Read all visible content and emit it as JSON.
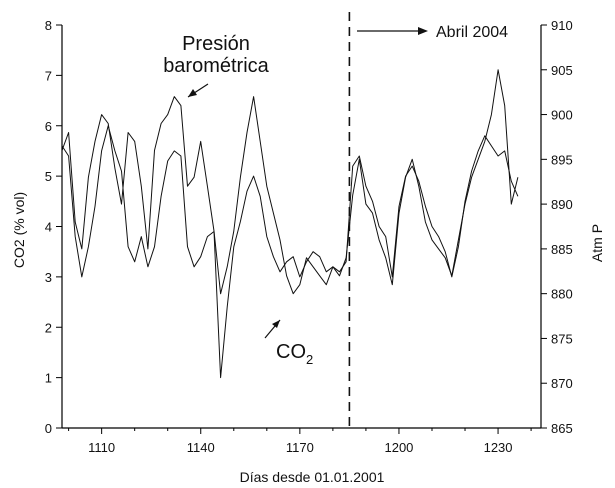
{
  "chart_data": {
    "type": "line",
    "title": "",
    "xlabel": "Días desde 01.01.2001",
    "ylabel": "CO2 (% vol)",
    "y2label": "Atm P",
    "xlim": [
      1098,
      1243
    ],
    "ylim": [
      0,
      8
    ],
    "y2lim": [
      865,
      910
    ],
    "xticks": [
      1110,
      1140,
      1170,
      1200,
      1230
    ],
    "yticks": [
      0,
      1,
      2,
      3,
      4,
      5,
      6,
      7,
      8
    ],
    "y2ticks": [
      865,
      870,
      875,
      880,
      885,
      890,
      895,
      900,
      905,
      910
    ],
    "grid": false,
    "series": [
      {
        "name": "Presión barométrica",
        "axis": "right",
        "x": [
          1098,
          1100,
          1102,
          1104,
          1106,
          1108,
          1110,
          1112,
          1114,
          1116,
          1118,
          1120,
          1122,
          1124,
          1126,
          1128,
          1130,
          1132,
          1134,
          1136,
          1138,
          1140,
          1142,
          1144,
          1146,
          1148,
          1150,
          1152,
          1154,
          1156,
          1158,
          1160,
          1162,
          1164,
          1166,
          1168,
          1170,
          1172,
          1174,
          1176,
          1178,
          1180,
          1182,
          1184,
          1186,
          1188,
          1190,
          1192,
          1194,
          1196,
          1198,
          1200,
          1202,
          1204,
          1206,
          1208,
          1210,
          1212,
          1214,
          1216,
          1218,
          1220,
          1222,
          1224,
          1226,
          1228,
          1230,
          1232,
          1234,
          1236
        ],
        "y": [
          896,
          898,
          888,
          885,
          893,
          897,
          900,
          899,
          894,
          890,
          898,
          897,
          892,
          885,
          896,
          899,
          900,
          902,
          901,
          892,
          893,
          897,
          892,
          887,
          880,
          883,
          887,
          893,
          898,
          902,
          897,
          892,
          889,
          886,
          882,
          880,
          881,
          884,
          883,
          882,
          881,
          883,
          882,
          884,
          891,
          895,
          890,
          889,
          886,
          884,
          881,
          889,
          893,
          895,
          892,
          888,
          886,
          885,
          884,
          882,
          886,
          890,
          893,
          895,
          897,
          900,
          905,
          901,
          890,
          893
        ]
      },
      {
        "name": "CO2",
        "axis": "left",
        "x": [
          1098,
          1100,
          1102,
          1104,
          1106,
          1108,
          1110,
          1112,
          1114,
          1116,
          1118,
          1120,
          1122,
          1124,
          1126,
          1128,
          1130,
          1132,
          1134,
          1136,
          1138,
          1140,
          1142,
          1144,
          1146,
          1148,
          1150,
          1152,
          1154,
          1156,
          1158,
          1160,
          1162,
          1164,
          1166,
          1168,
          1170,
          1172,
          1174,
          1176,
          1178,
          1180,
          1182,
          1184,
          1186,
          1188,
          1190,
          1192,
          1194,
          1196,
          1198,
          1200,
          1202,
          1204,
          1206,
          1208,
          1210,
          1212,
          1214,
          1216,
          1218,
          1220,
          1222,
          1224,
          1226,
          1228,
          1230,
          1232,
          1234,
          1236
        ],
        "y": [
          5.6,
          5.4,
          3.8,
          3.0,
          3.6,
          4.4,
          5.5,
          6.0,
          5.5,
          5.1,
          3.6,
          3.3,
          3.8,
          3.2,
          3.6,
          4.6,
          5.3,
          5.5,
          5.4,
          3.6,
          3.2,
          3.4,
          3.8,
          3.9,
          1.0,
          2.4,
          3.6,
          4.1,
          4.7,
          5.0,
          4.6,
          3.8,
          3.4,
          3.1,
          3.3,
          3.4,
          3.0,
          3.3,
          3.5,
          3.4,
          3.1,
          3.2,
          3.1,
          3.3,
          5.2,
          5.4,
          4.8,
          4.5,
          4.0,
          3.8,
          3.0,
          4.4,
          5.0,
          5.2,
          4.9,
          4.4,
          4.0,
          3.8,
          3.5,
          3.0,
          3.6,
          4.5,
          5.1,
          5.5,
          5.8,
          5.6,
          5.4,
          5.5,
          4.9,
          4.6
        ]
      }
    ],
    "annotations": {
      "pressure_label_line1": "Presión",
      "pressure_label_line2": "barométrica",
      "co2_label_main": "CO",
      "co2_label_sub": "2",
      "event_label": "Abril 2004",
      "event_x": 1185
    }
  }
}
